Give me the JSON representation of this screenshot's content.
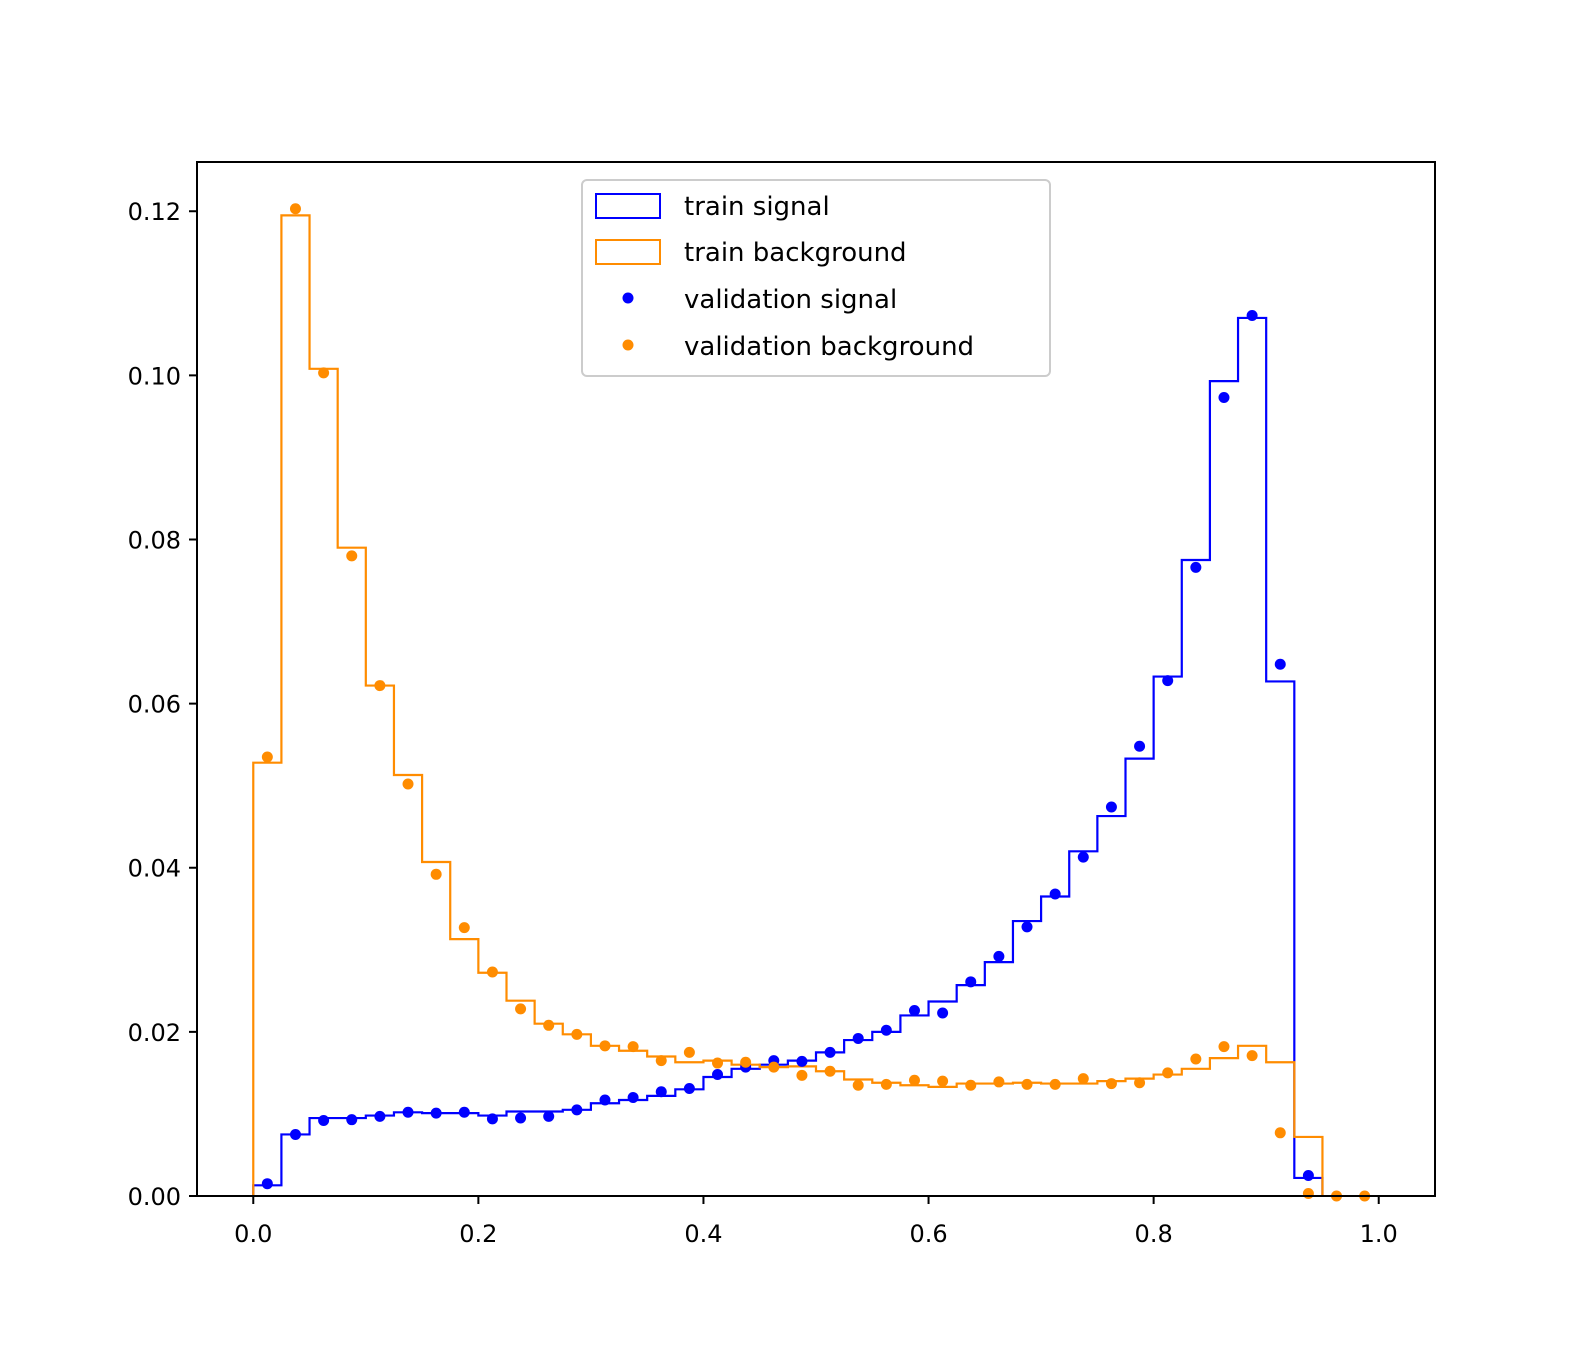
{
  "chart_data": {
    "type": "histogram",
    "title": "",
    "xlabel": "",
    "ylabel": "",
    "xlim": [
      -0.05,
      1.05
    ],
    "ylim": [
      0,
      0.126
    ],
    "x_ticks": [
      0.0,
      0.2,
      0.4,
      0.6,
      0.8,
      1.0
    ],
    "x_tick_labels": [
      "0.0",
      "0.2",
      "0.4",
      "0.6",
      "0.8",
      "1.0"
    ],
    "y_ticks": [
      0.0,
      0.02,
      0.04,
      0.06,
      0.08,
      0.1,
      0.12
    ],
    "y_tick_labels": [
      "0.00",
      "0.02",
      "0.04",
      "0.06",
      "0.08",
      "0.10",
      "0.12"
    ],
    "grid": false,
    "legend_position": "upper center",
    "bin_edges": [
      0.0,
      0.025,
      0.05,
      0.075,
      0.1,
      0.125,
      0.15,
      0.175,
      0.2,
      0.225,
      0.25,
      0.275,
      0.3,
      0.325,
      0.35,
      0.375,
      0.4,
      0.425,
      0.45,
      0.475,
      0.5,
      0.525,
      0.55,
      0.575,
      0.6,
      0.625,
      0.65,
      0.675,
      0.7,
      0.725,
      0.75,
      0.775,
      0.8,
      0.825,
      0.85,
      0.875,
      0.9,
      0.925,
      0.95
    ],
    "series": [
      {
        "name": "train signal",
        "kind": "step",
        "color": "#0000ff",
        "values": [
          0.0013,
          0.0075,
          0.0095,
          0.0095,
          0.0098,
          0.0102,
          0.0101,
          0.0101,
          0.0098,
          0.0103,
          0.0103,
          0.0105,
          0.0113,
          0.0117,
          0.0122,
          0.013,
          0.0145,
          0.0155,
          0.016,
          0.0165,
          0.0175,
          0.019,
          0.02,
          0.022,
          0.0237,
          0.0257,
          0.0285,
          0.0335,
          0.0365,
          0.042,
          0.0463,
          0.0533,
          0.0633,
          0.0775,
          0.0993,
          0.107,
          0.0627,
          0.0022
        ]
      },
      {
        "name": "train background",
        "kind": "step",
        "color": "#ff8c00",
        "values": [
          0.0528,
          0.1195,
          0.1008,
          0.079,
          0.0622,
          0.0513,
          0.0407,
          0.0313,
          0.0272,
          0.0238,
          0.021,
          0.0197,
          0.0183,
          0.0177,
          0.017,
          0.0163,
          0.0165,
          0.016,
          0.0157,
          0.0158,
          0.0152,
          0.0142,
          0.0138,
          0.0135,
          0.0133,
          0.0137,
          0.0137,
          0.0138,
          0.0137,
          0.0137,
          0.014,
          0.0143,
          0.0148,
          0.0155,
          0.0168,
          0.0183,
          0.0163,
          0.0072
        ]
      },
      {
        "name": "validation signal",
        "kind": "points",
        "color": "#0000ff",
        "x": [
          0.0125,
          0.0375,
          0.0625,
          0.0875,
          0.1125,
          0.1375,
          0.1625,
          0.1875,
          0.2125,
          0.2375,
          0.2625,
          0.2875,
          0.3125,
          0.3375,
          0.3625,
          0.3875,
          0.4125,
          0.4375,
          0.4625,
          0.4875,
          0.5125,
          0.5375,
          0.5625,
          0.5875,
          0.6125,
          0.6375,
          0.6625,
          0.6875,
          0.7125,
          0.7375,
          0.7625,
          0.7875,
          0.8125,
          0.8375,
          0.8625,
          0.8875,
          0.9125,
          0.9375
        ],
        "values": [
          0.0015,
          0.0075,
          0.0092,
          0.0093,
          0.0097,
          0.0102,
          0.0101,
          0.0102,
          0.0094,
          0.0095,
          0.0097,
          0.0105,
          0.0117,
          0.012,
          0.0127,
          0.0131,
          0.0148,
          0.0157,
          0.0165,
          0.0164,
          0.0175,
          0.0192,
          0.0202,
          0.0226,
          0.0223,
          0.0261,
          0.0292,
          0.0328,
          0.0368,
          0.0413,
          0.0474,
          0.0548,
          0.0628,
          0.0766,
          0.0973,
          0.1073,
          0.0648,
          0.0025
        ]
      },
      {
        "name": "validation background",
        "kind": "points",
        "color": "#ff8c00",
        "x": [
          0.0125,
          0.0375,
          0.0625,
          0.0875,
          0.1125,
          0.1375,
          0.1625,
          0.1875,
          0.2125,
          0.2375,
          0.2625,
          0.2875,
          0.3125,
          0.3375,
          0.3625,
          0.3875,
          0.4125,
          0.4375,
          0.4625,
          0.4875,
          0.5125,
          0.5375,
          0.5625,
          0.5875,
          0.6125,
          0.6375,
          0.6625,
          0.6875,
          0.7125,
          0.7375,
          0.7625,
          0.7875,
          0.8125,
          0.8375,
          0.8625,
          0.8875,
          0.9125,
          0.9375,
          0.9625,
          0.9875
        ],
        "values": [
          0.0535,
          0.1203,
          0.1003,
          0.078,
          0.0622,
          0.0502,
          0.0392,
          0.0327,
          0.0273,
          0.0228,
          0.0208,
          0.0197,
          0.0183,
          0.0182,
          0.0165,
          0.0175,
          0.0162,
          0.0163,
          0.0157,
          0.0147,
          0.0152,
          0.0135,
          0.0136,
          0.0141,
          0.014,
          0.0135,
          0.0139,
          0.0136,
          0.0136,
          0.0143,
          0.0137,
          0.0138,
          0.015,
          0.0167,
          0.0182,
          0.0171,
          0.0077,
          0.0003,
          0.0,
          0.0
        ]
      }
    ]
  }
}
